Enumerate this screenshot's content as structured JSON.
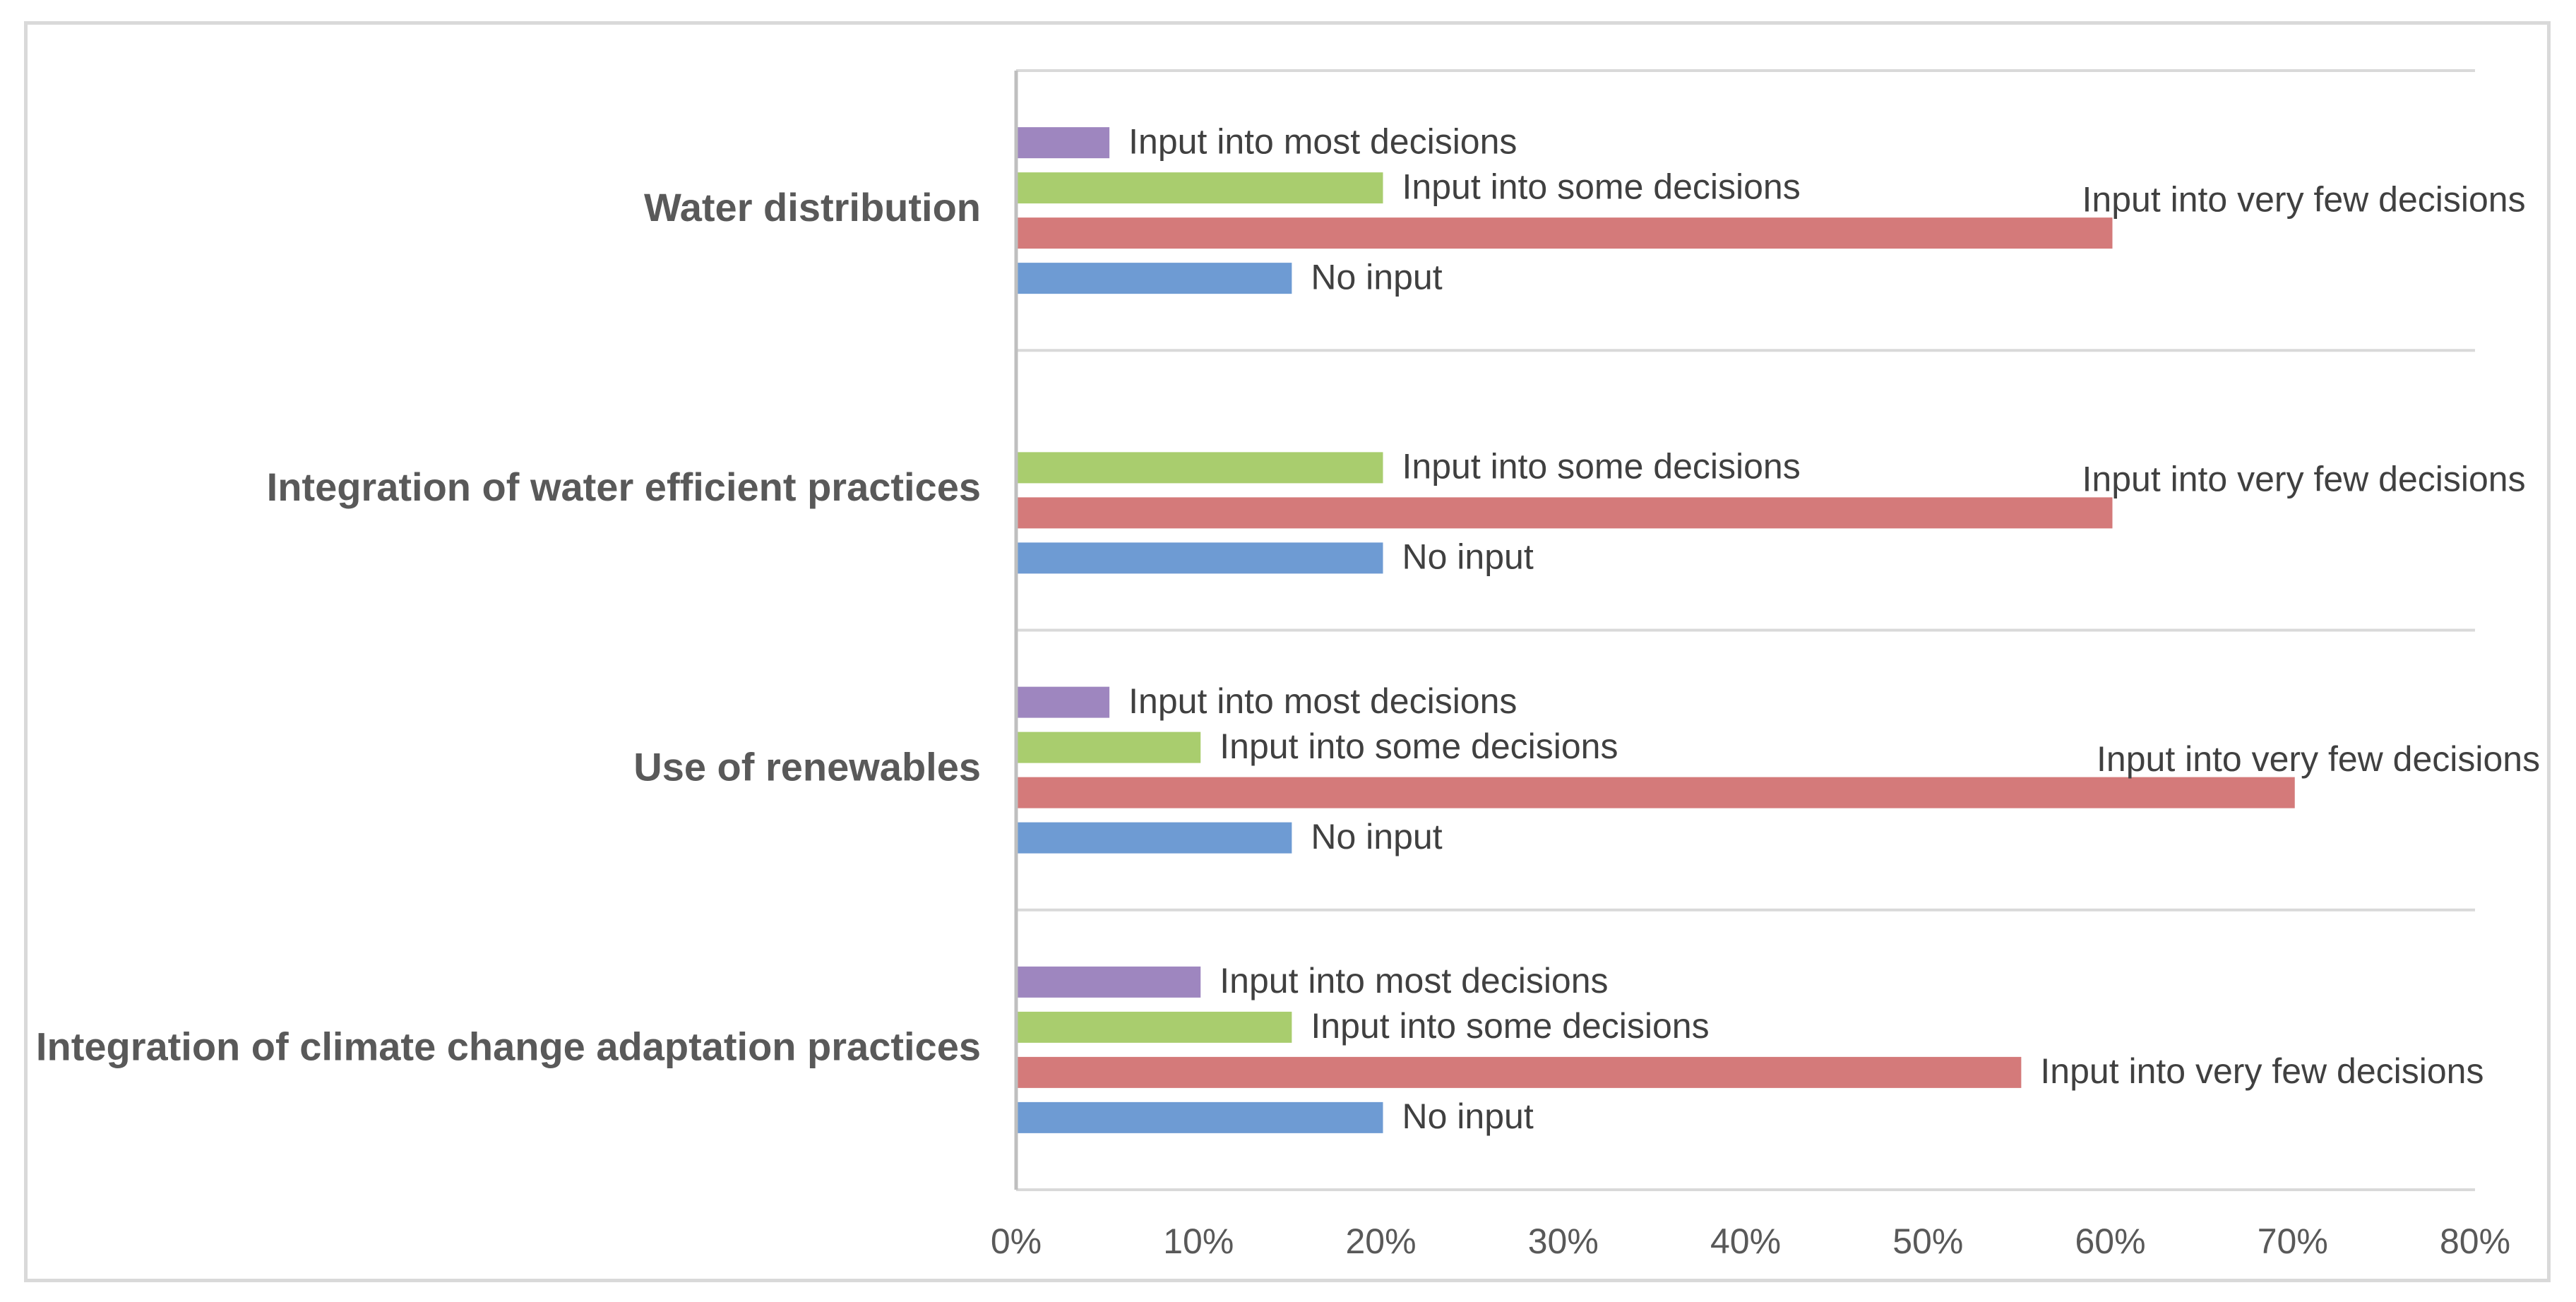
{
  "chart_data": {
    "type": "bar",
    "orientation": "horizontal",
    "title": "",
    "xlabel": "",
    "ylabel": "",
    "xlim": [
      0,
      80
    ],
    "x_ticks": [
      "0%",
      "10%",
      "20%",
      "30%",
      "40%",
      "50%",
      "60%",
      "70%",
      "80%"
    ],
    "grid": "horizontal category separators",
    "legend": "none (series names shown as data labels)",
    "categories": [
      "Water distribution",
      "Integration of water efficient practices",
      "Use of renewables",
      "Integration of climate change adaptation practices"
    ],
    "series": [
      {
        "name": "Input into most decisions",
        "color": "#9e86bf",
        "values": [
          5,
          0,
          5,
          10
        ]
      },
      {
        "name": "Input into some decisions",
        "color": "#a9cd6e",
        "values": [
          20,
          20,
          10,
          15
        ]
      },
      {
        "name": "Input into very few decisions",
        "color": "#d47a7a",
        "values": [
          60,
          60,
          70,
          55
        ]
      },
      {
        "name": "No input",
        "color": "#6e9bd3",
        "values": [
          15,
          20,
          15,
          20
        ]
      }
    ]
  }
}
